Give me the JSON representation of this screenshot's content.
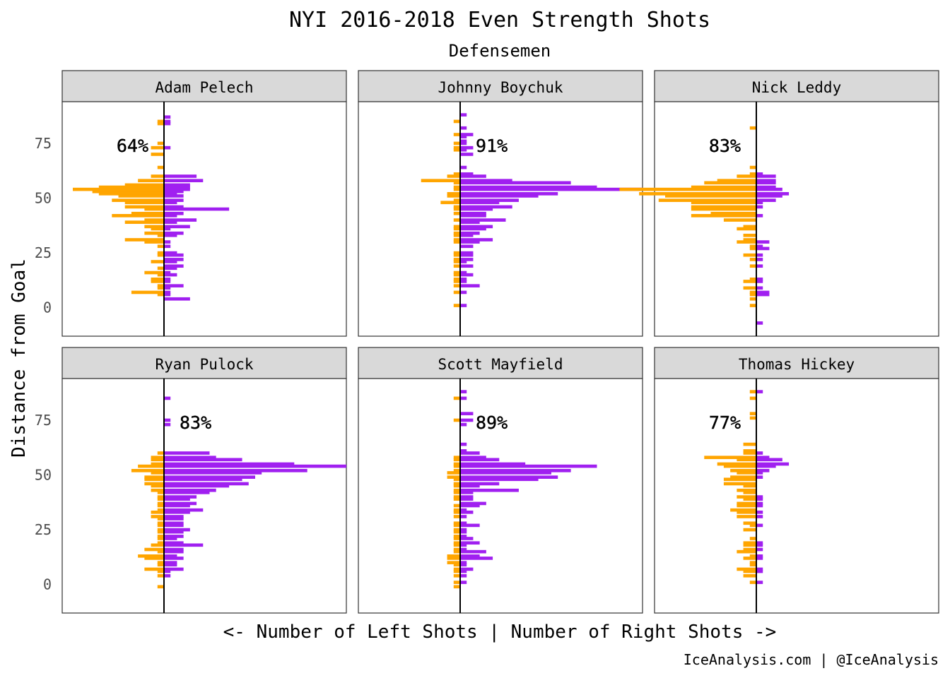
{
  "chart_data": {
    "type": "bar",
    "orientation": "horizontal",
    "title": "NYI 2016-2018 Even Strength Shots",
    "subtitle": "Defensemen",
    "xlabel": "<- Number of Left Shots | Number of Right Shots ->",
    "ylabel": "Distance from Goal",
    "ylim": [
      -13,
      94
    ],
    "yticks": [
      0,
      25,
      50,
      75
    ],
    "bin_width": 1.5,
    "x_max": 28,
    "grid": false,
    "colors": {
      "left": "#FFA500",
      "right": "#A020F0"
    },
    "caption": "IceAnalysis.com | @IceAnalysis",
    "panels": [
      {
        "name": "Adam Pelech",
        "pct": "64%",
        "y": [
          87,
          85,
          84,
          75,
          73,
          70,
          64,
          60,
          58,
          56,
          55,
          54,
          53,
          52,
          51,
          49,
          48,
          46,
          45,
          43,
          42,
          40,
          39,
          37,
          36,
          34,
          33,
          31,
          30,
          28,
          25,
          24,
          22,
          21,
          19,
          18,
          16,
          15,
          13,
          12,
          10,
          9,
          7,
          6,
          4,
          3
        ],
        "left": [
          0,
          1,
          1,
          1,
          2,
          2,
          1,
          2,
          4,
          6,
          10,
          14,
          11,
          10,
          7,
          8,
          6,
          6,
          3,
          5,
          8,
          3,
          6,
          3,
          2,
          3,
          1,
          6,
          3,
          1,
          1,
          1,
          0,
          2,
          0,
          1,
          3,
          1,
          2,
          2,
          1,
          1,
          5,
          1,
          0,
          0
        ],
        "right": [
          1,
          1,
          1,
          0,
          1,
          0,
          0,
          5,
          6,
          4,
          4,
          4,
          3,
          2,
          3,
          3,
          2,
          3,
          10,
          3,
          2,
          5,
          2,
          4,
          1,
          3,
          2,
          0,
          1,
          1,
          2,
          3,
          3,
          2,
          3,
          2,
          1,
          2,
          1,
          1,
          3,
          1,
          1,
          1,
          4,
          0
        ]
      },
      {
        "name": "Johnny Boychuk",
        "pct": "91%",
        "y": [
          88,
          85,
          82,
          79,
          78,
          76,
          75,
          73,
          72,
          70,
          64,
          61,
          60,
          58,
          57,
          55,
          54,
          52,
          51,
          49,
          48,
          46,
          45,
          43,
          42,
          40,
          39,
          37,
          36,
          34,
          33,
          31,
          30,
          28,
          25,
          24,
          22,
          21,
          19,
          16,
          15,
          13,
          12,
          10,
          7,
          6,
          4,
          1
        ],
        "left": [
          0,
          1,
          0,
          1,
          0,
          0,
          1,
          1,
          1,
          0,
          0,
          1,
          2,
          6,
          1,
          1,
          1,
          2,
          2,
          1,
          3,
          1,
          1,
          1,
          0,
          1,
          0,
          1,
          1,
          1,
          1,
          1,
          1,
          0,
          1,
          1,
          1,
          1,
          1,
          1,
          1,
          1,
          1,
          1,
          1,
          0,
          0,
          1
        ],
        "right": [
          1,
          0,
          1,
          2,
          1,
          1,
          1,
          2,
          1,
          2,
          1,
          2,
          4,
          8,
          17,
          21,
          28,
          15,
          12,
          9,
          6,
          8,
          5,
          4,
          4,
          7,
          3,
          5,
          4,
          3,
          2,
          5,
          3,
          2,
          2,
          2,
          2,
          1,
          2,
          1,
          2,
          1,
          1,
          3,
          1,
          0,
          0,
          1
        ]
      },
      {
        "name": "Nick Leddy",
        "pct": "83%",
        "y": [
          82,
          64,
          61,
          60,
          58,
          57,
          55,
          54,
          52,
          51,
          49,
          48,
          46,
          45,
          43,
          42,
          40,
          37,
          36,
          33,
          31,
          30,
          28,
          27,
          24,
          22,
          19,
          13,
          12,
          9,
          7,
          6,
          4,
          1,
          -7
        ],
        "left": [
          1,
          1,
          1,
          3,
          6,
          8,
          10,
          21,
          18,
          14,
          15,
          10,
          10,
          10,
          7,
          10,
          5,
          2,
          3,
          2,
          2,
          3,
          1,
          1,
          2,
          1,
          1,
          1,
          2,
          2,
          1,
          1,
          1,
          1,
          0
        ],
        "right": [
          0,
          0,
          1,
          3,
          3,
          3,
          3,
          4,
          5,
          4,
          3,
          1,
          1,
          0,
          0,
          1,
          0,
          0,
          0,
          0,
          0,
          2,
          1,
          2,
          1,
          1,
          1,
          1,
          1,
          1,
          2,
          2,
          0,
          0,
          1
        ]
      },
      {
        "name": "Ryan Pulock",
        "pct": "83%",
        "y": [
          85,
          75,
          73,
          60,
          58,
          57,
          55,
          54,
          52,
          51,
          49,
          48,
          46,
          45,
          43,
          42,
          40,
          39,
          37,
          36,
          34,
          33,
          31,
          30,
          28,
          27,
          25,
          24,
          22,
          21,
          19,
          18,
          16,
          15,
          13,
          12,
          10,
          9,
          7,
          6,
          4,
          -1
        ],
        "left": [
          0,
          0,
          0,
          1,
          2,
          2,
          2,
          4,
          5,
          2,
          3,
          3,
          3,
          2,
          2,
          1,
          1,
          1,
          1,
          1,
          1,
          2,
          2,
          1,
          1,
          1,
          1,
          1,
          1,
          1,
          1,
          2,
          3,
          1,
          4,
          3,
          1,
          1,
          3,
          1,
          1,
          1
        ],
        "right": [
          1,
          1,
          1,
          7,
          8,
          12,
          20,
          28,
          22,
          15,
          14,
          12,
          13,
          10,
          8,
          7,
          5,
          4,
          5,
          4,
          6,
          4,
          3,
          3,
          3,
          3,
          4,
          3,
          3,
          2,
          3,
          6,
          3,
          3,
          2,
          3,
          2,
          2,
          3,
          1,
          1,
          0
        ]
      },
      {
        "name": "Scott Mayfield",
        "pct": "89%",
        "y": [
          88,
          85,
          78,
          75,
          73,
          64,
          61,
          60,
          58,
          57,
          55,
          54,
          52,
          51,
          49,
          48,
          46,
          45,
          43,
          42,
          40,
          39,
          37,
          36,
          34,
          33,
          31,
          28,
          27,
          25,
          24,
          22,
          21,
          19,
          18,
          16,
          15,
          13,
          12,
          10,
          9,
          7,
          6,
          4,
          1,
          -1
        ],
        "left": [
          0,
          1,
          0,
          1,
          0,
          0,
          0,
          0,
          1,
          1,
          1,
          1,
          1,
          2,
          2,
          1,
          1,
          1,
          1,
          1,
          1,
          1,
          0,
          1,
          1,
          1,
          1,
          1,
          1,
          1,
          1,
          1,
          1,
          1,
          1,
          1,
          1,
          2,
          2,
          2,
          1,
          1,
          1,
          1,
          1,
          1
        ],
        "right": [
          1,
          1,
          2,
          2,
          1,
          1,
          1,
          3,
          4,
          6,
          10,
          21,
          17,
          14,
          15,
          12,
          6,
          3,
          9,
          2,
          2,
          2,
          4,
          3,
          1,
          2,
          1,
          1,
          3,
          1,
          1,
          1,
          2,
          3,
          1,
          1,
          4,
          3,
          5,
          1,
          1,
          2,
          1,
          1,
          1,
          0
        ]
      },
      {
        "name": "Thomas Hickey",
        "pct": "77%",
        "y": [
          88,
          85,
          78,
          76,
          64,
          61,
          60,
          58,
          57,
          55,
          54,
          52,
          51,
          49,
          48,
          46,
          45,
          43,
          42,
          40,
          39,
          37,
          36,
          34,
          33,
          31,
          28,
          27,
          25,
          21,
          19,
          18,
          16,
          15,
          13,
          12,
          10,
          9,
          7,
          6,
          4,
          1
        ],
        "left": [
          1,
          1,
          1,
          1,
          2,
          2,
          2,
          8,
          3,
          6,
          5,
          4,
          3,
          4,
          5,
          5,
          2,
          3,
          2,
          3,
          2,
          3,
          3,
          4,
          3,
          3,
          2,
          1,
          2,
          1,
          2,
          2,
          2,
          3,
          1,
          2,
          1,
          1,
          3,
          2,
          2,
          1
        ],
        "right": [
          1,
          0,
          0,
          0,
          0,
          0,
          1,
          2,
          4,
          5,
          3,
          2,
          1,
          1,
          0,
          0,
          0,
          0,
          0,
          1,
          1,
          1,
          1,
          0,
          1,
          1,
          0,
          1,
          0,
          0,
          1,
          1,
          1,
          0,
          1,
          1,
          0,
          0,
          1,
          1,
          0,
          1
        ]
      }
    ]
  }
}
